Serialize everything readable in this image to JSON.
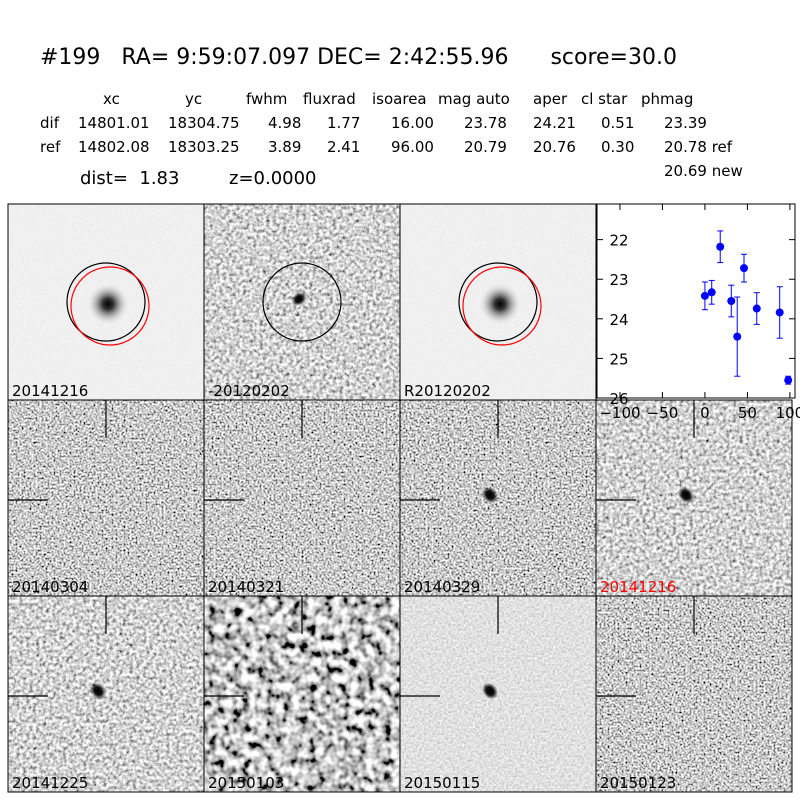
{
  "header": {
    "title": "#199   RA= 9:59:07.097 DEC= 2:42:55.96      score=30.0"
  },
  "table": {
    "columns": [
      "xc",
      "yc",
      "fwhm",
      "fluxrad",
      "isoarea",
      "mag auto",
      "aper",
      "cl star",
      "phmag"
    ],
    "rows": [
      [
        "dif",
        "14801.01",
        "18304.75",
        "4.98",
        "1.77",
        "16.00",
        "23.78",
        "24.21",
        "0.51",
        "23.39"
      ],
      [
        "ref",
        "14802.08",
        "18303.25",
        "3.89",
        "2.41",
        "96.00",
        "20.79",
        "20.76",
        "0.30",
        "20.78 ref"
      ]
    ],
    "extra": "20.69 new"
  },
  "dist": "dist=  1.83",
  "z": "z=0.0000",
  "panels": [
    {
      "label": "20141216"
    },
    {
      "label": "-20120202"
    },
    {
      "label": "R20120202"
    },
    {
      "label": "20140304"
    },
    {
      "label": "20140321"
    },
    {
      "label": "20140329"
    },
    {
      "label": "20141216",
      "label_color": "#ff0000"
    },
    {
      "label": "20141225"
    },
    {
      "label": "20150103"
    },
    {
      "label": "20150115"
    },
    {
      "label": "20150123"
    }
  ],
  "chart_data": {
    "type": "errorbar",
    "xlim": [
      -127,
      106
    ],
    "ylim": [
      26,
      21.1
    ],
    "xticks": [
      {
        "value": -100,
        "label": "−100"
      },
      {
        "value": -50,
        "label": "−50"
      },
      0,
      50,
      100
    ],
    "yticks": [
      22,
      23,
      24,
      25,
      26
    ],
    "series": [
      {
        "color": "#0000ff",
        "x": [
          0,
          8,
          18,
          31,
          38,
          46,
          61,
          88,
          98
        ],
        "values": [
          23.42,
          23.33,
          22.18,
          23.55,
          24.45,
          22.72,
          23.74,
          23.84,
          25.55
        ],
        "errors": [
          0.35,
          0.3,
          0.4,
          0.4,
          1.0,
          0.35,
          0.4,
          0.65,
          0.1
        ]
      }
    ]
  }
}
